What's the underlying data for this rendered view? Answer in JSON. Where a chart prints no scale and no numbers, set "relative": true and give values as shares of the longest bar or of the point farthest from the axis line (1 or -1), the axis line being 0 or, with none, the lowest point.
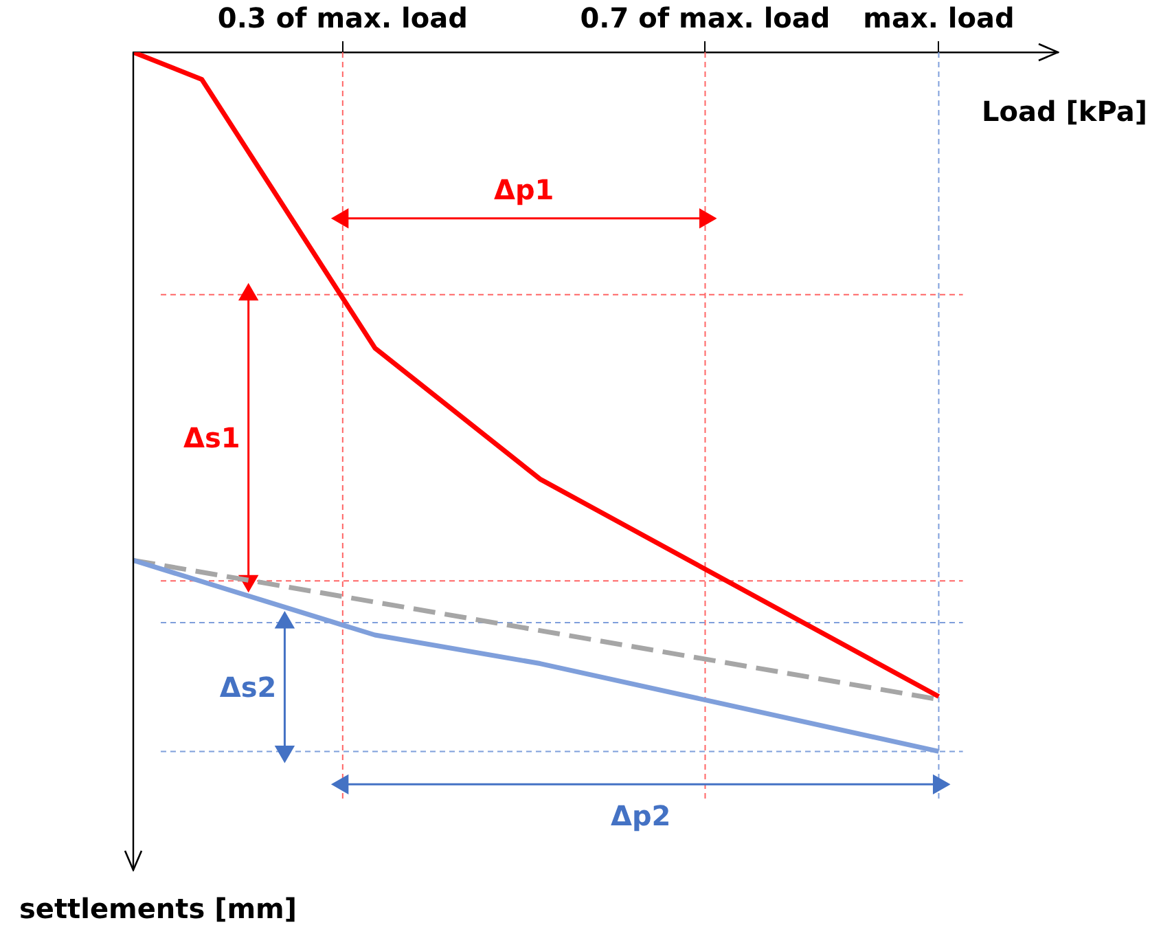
{
  "chart_data": {
    "type": "line",
    "relative": true,
    "xlabel": "Load [kPa]",
    "xlim": [
      0,
      1.148
    ],
    "xticks": [
      {
        "value": 0.26,
        "label": "0.3 of max. load"
      },
      {
        "value": 0.71,
        "label": "0.7 of max. load"
      },
      {
        "value": 1,
        "label": "max. load"
      }
    ],
    "series": [
      {
        "color": "#ff0000",
        "x": [
          0,
          0.085,
          0.3,
          0.505,
          1
        ],
        "values": [
          0,
          -0.037,
          -0.404,
          -0.583,
          -0.88
        ]
      },
      {
        "color": "#7f9fdb",
        "x": [
          0,
          0.3,
          0.505,
          1
        ],
        "values": [
          -0.694,
          -0.796,
          -0.835,
          -0.955
        ]
      },
      {
        "color": "#a6a6a6",
        "line_style": "dashed",
        "x": [
          0,
          1
        ],
        "values": [
          -0.694,
          -0.884
        ]
      },
      {
        "name": "Δp1",
        "color": "#ff0000",
        "marker": "triangle",
        "x": [
          0.26,
          0.71
        ],
        "values": [
          -0.227,
          -0.227
        ]
      },
      {
        "name": "Δs1",
        "color": "#ff0000",
        "marker": "triangle",
        "x": [
          0.143,
          0.143
        ],
        "values": [
          -0.331,
          -0.722
        ]
      },
      {
        "name": "Δs2",
        "color": "#4472c4",
        "marker": "triangle",
        "x": [
          0.188,
          0.188
        ],
        "values": [
          -0.779,
          -0.955
        ]
      },
      {
        "name": "Δp2",
        "color": "#4472c4",
        "marker": "triangle",
        "x": [
          0.26,
          1
        ],
        "values": [
          -1,
          -1
        ]
      }
    ],
    "ref_lines": [
      {
        "axis": "x",
        "value": 0.26,
        "color": "#ff6666",
        "line_style": "dashed"
      },
      {
        "axis": "x",
        "value": 0.71,
        "color": "#ff6666",
        "line_style": "dashed"
      },
      {
        "axis": "x",
        "value": 1,
        "color": "#7f9fdb",
        "line_style": "dashed"
      },
      {
        "axis": "y",
        "value": -0.331,
        "color": "#ff6666",
        "line_style": "dashed"
      },
      {
        "axis": "y",
        "value": -0.722,
        "color": "#ff6666",
        "line_style": "dashed"
      },
      {
        "axis": "y",
        "value": -0.779,
        "color": "#7f9fdb",
        "line_style": "dashed"
      },
      {
        "axis": "y",
        "value": -0.955,
        "color": "#7f9fdb",
        "line_style": "dashed"
      }
    ],
    "annotations": [
      "settlements [mm]"
    ],
    "grid": false,
    "legend": false
  }
}
